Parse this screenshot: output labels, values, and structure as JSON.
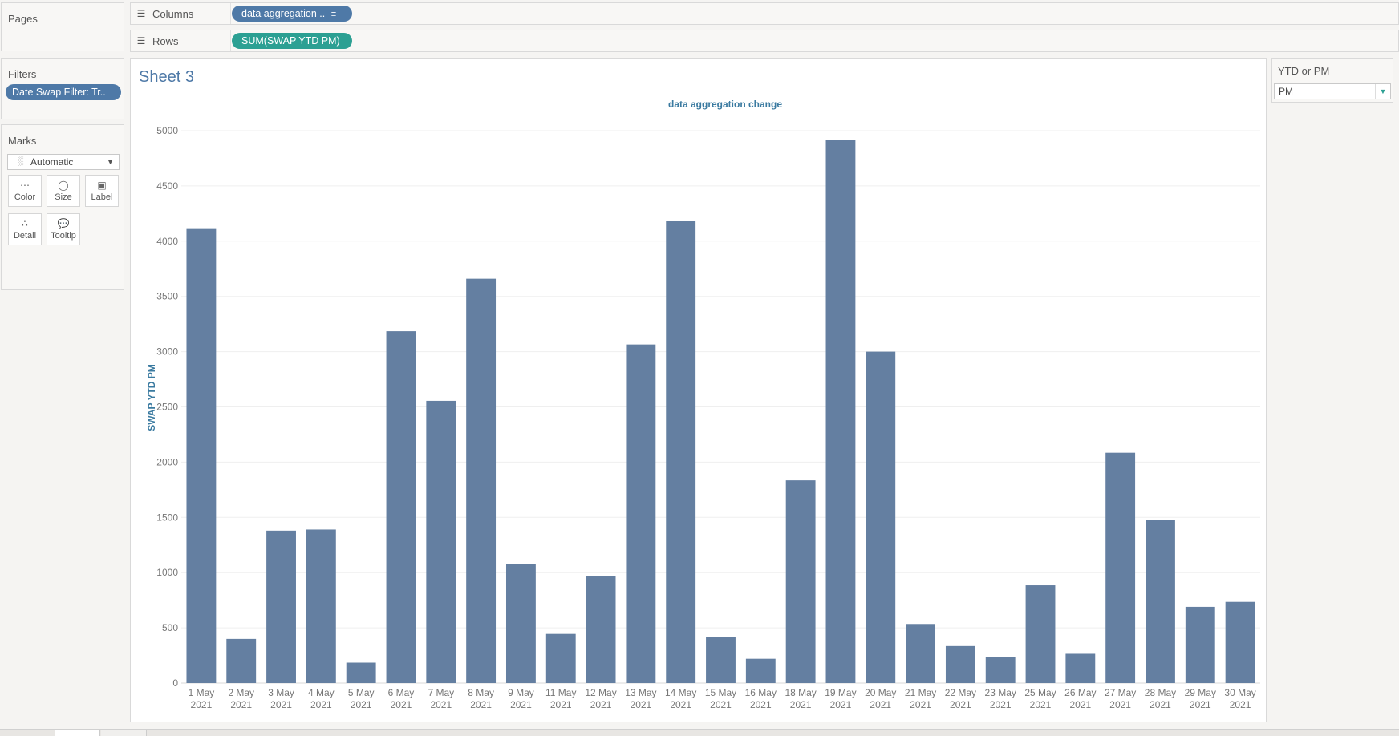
{
  "shelves": {
    "pages_label": "Pages",
    "columns_label": "Columns",
    "columns_pill": "data aggregation ..",
    "rows_label": "Rows",
    "rows_pill": "SUM(SWAP YTD PM)"
  },
  "filters": {
    "title": "Filters",
    "pill": "Date Swap Filter: Tr.."
  },
  "marks": {
    "title": "Marks",
    "mark_type": "Automatic",
    "buttons": [
      "Color",
      "Size",
      "Label",
      "Detail",
      "Tooltip"
    ]
  },
  "parameter": {
    "title": "YTD or PM",
    "value": "PM"
  },
  "sheet": {
    "title": "Sheet 3"
  },
  "colors": {
    "bar": "#647fa1",
    "title": "#4e79a7",
    "pill_blue": "#4e79a7",
    "pill_green": "#2ca093"
  },
  "chart_data": {
    "type": "bar",
    "title": "data aggregation change",
    "xlabel": "",
    "ylabel": "SWAP YTD PM",
    "ylim": [
      0,
      5000
    ],
    "yticks": [
      0,
      500,
      1000,
      1500,
      2000,
      2500,
      3000,
      3500,
      4000,
      4500,
      5000
    ],
    "categories": [
      "1 May 2021",
      "2 May 2021",
      "3 May 2021",
      "4 May 2021",
      "5 May 2021",
      "6 May 2021",
      "7 May 2021",
      "8 May 2021",
      "9 May 2021",
      "11 May 2021",
      "12 May 2021",
      "13 May 2021",
      "14 May 2021",
      "15 May 2021",
      "16 May 2021",
      "18 May 2021",
      "19 May 2021",
      "20 May 2021",
      "21 May 2021",
      "22 May 2021",
      "23 May 2021",
      "25 May 2021",
      "26 May 2021",
      "27 May 2021",
      "28 May 2021",
      "29 May 2021",
      "30 May 2021"
    ],
    "values": [
      4110,
      400,
      1380,
      1390,
      185,
      3185,
      2555,
      3660,
      1080,
      445,
      970,
      3065,
      4180,
      420,
      220,
      1835,
      4920,
      3000,
      535,
      335,
      235,
      885,
      265,
      2085,
      1475,
      690,
      735
    ],
    "grid": true
  }
}
